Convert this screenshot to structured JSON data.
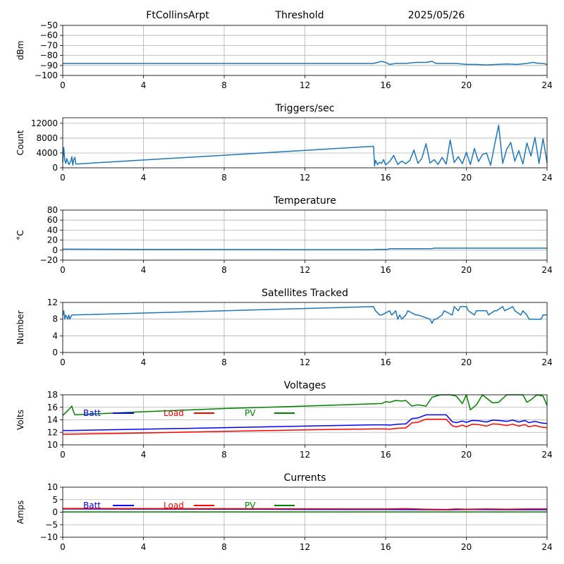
{
  "header": {
    "station": "FtCollinsArpt",
    "mode": "Threshold",
    "date": "2025/05/26"
  },
  "colors": {
    "series_default": "#1f77b4",
    "batt": "#0000ff",
    "load": "#ff0000",
    "pv": "#008000",
    "grid": "#b0b0b0"
  },
  "chart_data": [
    {
      "id": "threshold",
      "type": "line",
      "title": "",
      "xlabel": "",
      "ylabel": "dBm",
      "xlim": [
        0,
        24
      ],
      "ylim": [
        -100,
        -50
      ],
      "xticks": [
        0,
        4,
        8,
        12,
        16,
        20,
        24
      ],
      "yticks": [
        -100,
        -90,
        -80,
        -70,
        -60,
        -50
      ],
      "grid": true,
      "series": [
        {
          "color_key": "series_default",
          "x": [
            0,
            0.5,
            2,
            6,
            10,
            14,
            15.4,
            15.6,
            15.8,
            16.0,
            16.2,
            16.5,
            17.0,
            17.5,
            18.0,
            18.3,
            18.5,
            19.0,
            19.5,
            20.0,
            20.5,
            21.0,
            21.5,
            22.0,
            22.5,
            23.0,
            23.3,
            23.6,
            23.8,
            24.0
          ],
          "y": [
            -88,
            -88,
            -88,
            -88,
            -88,
            -88,
            -88,
            -87,
            -86,
            -87,
            -89,
            -88,
            -88,
            -87,
            -87,
            -86,
            -88,
            -88,
            -88,
            -89,
            -89,
            -89.5,
            -89,
            -88.5,
            -89,
            -88,
            -87,
            -88,
            -88,
            -89
          ]
        }
      ]
    },
    {
      "id": "triggers",
      "type": "line",
      "title": "Triggers/sec",
      "xlabel": "",
      "ylabel": "Count",
      "xlim": [
        0,
        24
      ],
      "ylim": [
        0,
        13500
      ],
      "xticks": [
        0,
        4,
        8,
        12,
        16,
        20,
        24
      ],
      "yticks": [
        0,
        4000,
        8000,
        12000
      ],
      "grid": true,
      "series": [
        {
          "color_key": "series_default",
          "x": [
            0,
            0.05,
            0.1,
            0.15,
            0.2,
            0.3,
            0.4,
            0.45,
            0.5,
            0.55,
            0.6,
            0.65,
            15.4,
            15.45,
            15.5,
            15.6,
            15.7,
            15.8,
            15.9,
            16.0,
            16.2,
            16.4,
            16.6,
            16.8,
            17.0,
            17.2,
            17.4,
            17.6,
            17.8,
            18.0,
            18.2,
            18.4,
            18.6,
            18.8,
            19.0,
            19.2,
            19.4,
            19.6,
            19.8,
            20.0,
            20.2,
            20.4,
            20.6,
            20.8,
            21.0,
            21.2,
            21.4,
            21.6,
            21.8,
            22.0,
            22.2,
            22.4,
            22.6,
            22.8,
            23.0,
            23.2,
            23.4,
            23.6,
            23.8,
            24.0
          ],
          "y": [
            1500,
            5500,
            2000,
            1200,
            2500,
            900,
            1800,
            3000,
            700,
            2200,
            2800,
            1000,
            5800,
            500,
            2000,
            900,
            1500,
            1200,
            2200,
            800,
            1700,
            3300,
            900,
            1800,
            1100,
            2000,
            4800,
            1200,
            2600,
            6500,
            1300,
            2200,
            900,
            2800,
            1000,
            7500,
            1400,
            3000,
            1100,
            4200,
            900,
            5200,
            1700,
            3600,
            4000,
            700,
            6200,
            11500,
            1200,
            5000,
            6800,
            1800,
            4600,
            1000,
            6700,
            3200,
            8200,
            1200,
            7900,
            1300
          ]
        }
      ]
    },
    {
      "id": "temperature",
      "type": "line",
      "title": "Temperature",
      "xlabel": "",
      "ylabel": "°C",
      "xlim": [
        0,
        24
      ],
      "ylim": [
        -20,
        80
      ],
      "xticks": [
        0,
        4,
        8,
        12,
        16,
        20,
        24
      ],
      "yticks": [
        -20,
        0,
        20,
        40,
        60,
        80
      ],
      "grid": true,
      "series": [
        {
          "color_key": "series_default",
          "x": [
            0,
            4,
            8,
            12,
            15.4,
            15.5,
            16.1,
            16.2,
            18.3,
            18.4,
            20,
            24
          ],
          "y": [
            2,
            1.5,
            1.2,
            1,
            0.8,
            1.5,
            1.5,
            3,
            3,
            4,
            4,
            4
          ]
        }
      ]
    },
    {
      "id": "satellites",
      "type": "line",
      "title": "Satellites Tracked",
      "xlabel": "",
      "ylabel": "Number",
      "xlim": [
        0,
        24
      ],
      "ylim": [
        0,
        12
      ],
      "xticks": [
        0,
        4,
        8,
        12,
        16,
        20,
        24
      ],
      "yticks": [
        0,
        4,
        8,
        12
      ],
      "grid": true,
      "series": [
        {
          "color_key": "series_default",
          "x": [
            0,
            0.05,
            0.1,
            0.15,
            0.25,
            0.3,
            0.35,
            0.45,
            0.5,
            15.4,
            15.5,
            15.7,
            15.8,
            16.2,
            16.3,
            16.5,
            16.6,
            16.7,
            16.8,
            17.0,
            17.1,
            17.5,
            17.6,
            18.2,
            18.3,
            18.4,
            18.5,
            18.8,
            18.9,
            19.3,
            19.4,
            19.6,
            19.7,
            20.0,
            20.1,
            20.4,
            20.5,
            21.0,
            21.1,
            21.4,
            21.5,
            21.8,
            21.9,
            22.3,
            22.4,
            22.7,
            22.8,
            23.0,
            23.1,
            23.7,
            23.8,
            24.0
          ],
          "y": [
            9,
            10,
            8,
            9,
            8,
            9,
            8,
            9,
            9,
            11,
            10,
            9,
            9,
            10,
            9,
            10,
            8,
            9,
            8,
            9,
            10,
            9,
            9,
            8,
            7,
            8,
            8,
            9,
            10,
            9,
            11,
            10,
            11,
            11,
            10,
            9,
            10,
            10,
            9,
            10,
            10,
            11,
            10,
            11,
            10,
            9,
            10,
            9,
            8,
            8,
            9,
            9
          ]
        }
      ]
    },
    {
      "id": "voltages",
      "type": "line",
      "title": "Voltages",
      "xlabel": "",
      "ylabel": "Volts",
      "xlim": [
        0,
        24
      ],
      "ylim": [
        10,
        18
      ],
      "xticks": [
        0,
        4,
        8,
        12,
        16,
        20,
        24
      ],
      "yticks": [
        10,
        12,
        14,
        16,
        18
      ],
      "grid": true,
      "legend": [
        "Batt",
        "Load",
        "PV"
      ],
      "series": [
        {
          "name": "Batt",
          "color_key": "batt",
          "x": [
            0,
            0.4,
            4,
            8,
            12,
            15.4,
            16.0,
            16.2,
            16.6,
            17.0,
            17.3,
            17.6,
            18.0,
            18.5,
            19.0,
            19.3,
            19.5,
            19.8,
            20.0,
            20.3,
            20.6,
            21.0,
            21.3,
            21.6,
            22.0,
            22.3,
            22.6,
            22.9,
            23.1,
            23.4,
            23.7,
            24.0
          ],
          "y": [
            12.3,
            12.3,
            12.5,
            12.75,
            13.0,
            13.2,
            13.2,
            13.15,
            13.3,
            13.35,
            14.2,
            14.3,
            14.8,
            14.8,
            14.8,
            13.7,
            13.55,
            13.8,
            13.6,
            13.9,
            13.85,
            13.65,
            13.95,
            13.9,
            13.75,
            13.95,
            13.65,
            13.9,
            13.55,
            13.75,
            13.5,
            13.4
          ]
        },
        {
          "name": "Load",
          "color_key": "load",
          "x": [
            0,
            0.4,
            4,
            8,
            12,
            15.4,
            16.0,
            16.2,
            16.6,
            17.0,
            17.3,
            17.6,
            18.0,
            18.5,
            19.0,
            19.3,
            19.5,
            19.8,
            20.0,
            20.3,
            20.6,
            21.0,
            21.3,
            21.6,
            22.0,
            22.3,
            22.6,
            22.9,
            23.1,
            23.4,
            23.7,
            24.0
          ],
          "y": [
            11.7,
            11.7,
            11.9,
            12.15,
            12.4,
            12.55,
            12.55,
            12.5,
            12.65,
            12.7,
            13.5,
            13.6,
            14.1,
            14.1,
            14.1,
            13.05,
            12.85,
            13.15,
            12.9,
            13.3,
            13.25,
            13.0,
            13.35,
            13.3,
            13.1,
            13.3,
            13.0,
            13.25,
            12.9,
            13.1,
            12.85,
            12.75
          ]
        },
        {
          "name": "PV",
          "color_key": "pv",
          "x": [
            0,
            0.25,
            0.45,
            0.5,
            0.6,
            4,
            8,
            12,
            15.8,
            16.0,
            16.2,
            16.5,
            16.8,
            17.0,
            17.3,
            17.6,
            18.0,
            18.3,
            18.7,
            19.2,
            19.5,
            19.8,
            20.0,
            20.2,
            20.5,
            20.8,
            21.3,
            21.6,
            22.0,
            22.2,
            22.5,
            22.8,
            23.0,
            23.2,
            23.5,
            23.8,
            24.0
          ],
          "y": [
            14.7,
            15.5,
            16.2,
            15.6,
            14.8,
            15.3,
            15.8,
            16.2,
            16.6,
            16.9,
            16.8,
            17.1,
            17.0,
            17.1,
            16.2,
            16.4,
            16.2,
            17.6,
            18.0,
            18.0,
            17.8,
            16.6,
            18.0,
            15.6,
            16.4,
            18.0,
            16.7,
            16.8,
            18.0,
            18.0,
            18.0,
            18.0,
            16.8,
            17.2,
            18.0,
            17.8,
            16.3
          ]
        }
      ]
    },
    {
      "id": "currents",
      "type": "line",
      "title": "Currents",
      "xlabel": "",
      "ylabel": "Amps",
      "xlim": [
        0,
        24
      ],
      "ylim": [
        -10,
        10
      ],
      "xticks": [
        0,
        4,
        8,
        12,
        16,
        20,
        24
      ],
      "yticks": [
        -10,
        -5,
        0,
        5,
        10
      ],
      "grid": true,
      "legend": [
        "Batt",
        "Load",
        "PV"
      ],
      "series": [
        {
          "name": "Batt",
          "color_key": "batt",
          "x": [
            0,
            4,
            8,
            12,
            16,
            19,
            20,
            22,
            24
          ],
          "y": [
            1.3,
            1.25,
            1.2,
            1.1,
            1.05,
            0.95,
            1.05,
            1.0,
            1.0
          ]
        },
        {
          "name": "Load",
          "color_key": "load",
          "x": [
            0,
            4,
            8,
            12,
            16,
            17,
            18,
            19,
            19.5,
            20,
            21,
            22,
            23,
            24
          ],
          "y": [
            1.5,
            1.45,
            1.4,
            1.35,
            1.3,
            1.4,
            1.2,
            1.1,
            1.3,
            1.2,
            1.3,
            1.2,
            1.3,
            1.3
          ]
        },
        {
          "name": "PV",
          "color_key": "pv",
          "x": [
            0,
            24
          ],
          "y": [
            0.1,
            0.1
          ]
        }
      ]
    }
  ]
}
